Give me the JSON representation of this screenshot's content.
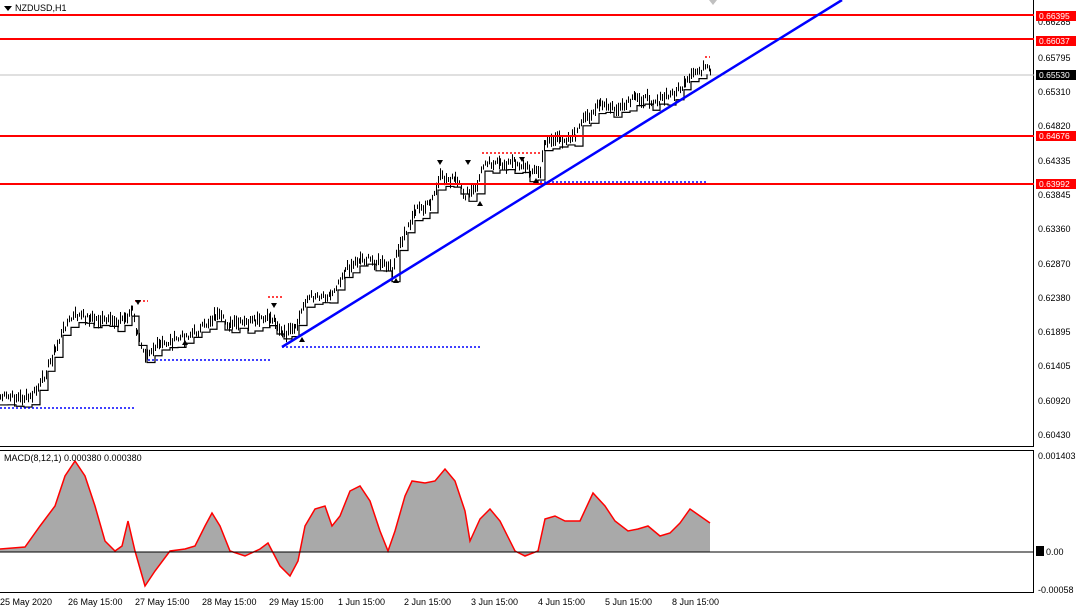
{
  "chart": {
    "symbol": "NZDUSD,H1",
    "indicator_label": "MACD(8,12,1) 0.000380 0.000380",
    "price_axis": [
      "0.66285",
      "0.65795",
      "0.65310",
      "0.64820",
      "0.64335",
      "0.63845",
      "0.63360",
      "0.62870",
      "0.62380",
      "0.61895",
      "0.61405",
      "0.60920",
      "0.60430"
    ],
    "price_tags": {
      "r1": "0.66395",
      "r2": "0.66037",
      "r3": "0.64676",
      "r4": "0.63992",
      "current": "0.65530"
    },
    "macd_axis": {
      "top": "0.001403",
      "zero": "0.00",
      "bottom": "-0.00058"
    },
    "time_axis": [
      "25 May 2020",
      "26 May 15:00",
      "27 May 15:00",
      "28 May 15:00",
      "29 May 15:00",
      "1 Jun 15:00",
      "2 Jun 15:00",
      "3 Jun 15:00",
      "4 Jun 15:00",
      "5 Jun 15:00",
      "8 Jun 15:00"
    ],
    "colors": {
      "resistance": "#ff0000",
      "trendline": "#0000ff",
      "macd_fill": "#a9a9a9",
      "macd_line": "#ff0000"
    }
  }
}
